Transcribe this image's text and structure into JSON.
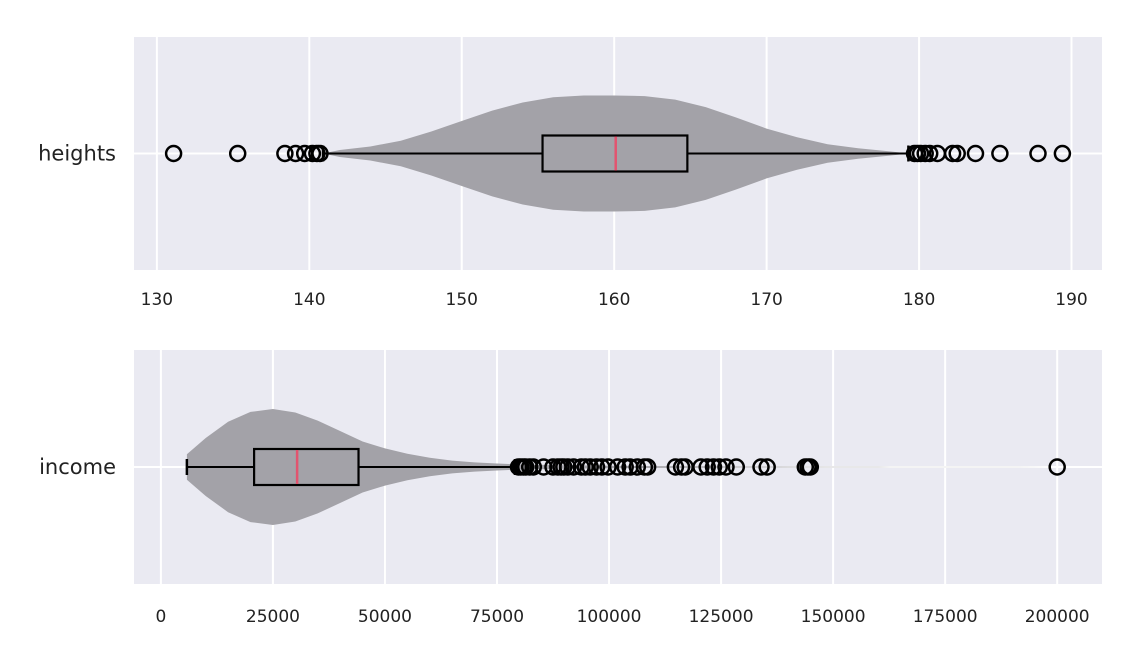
{
  "style": {
    "panel_bg": "#eaeaf2",
    "grid_color": "#ffffff",
    "violin_color": "#a3a2a8",
    "box_color": "#000000",
    "median_color": "#e2546f"
  },
  "chart_data": [
    {
      "type": "violin+box",
      "orientation": "horizontal",
      "category": "heights",
      "xlim": [
        128.5,
        192
      ],
      "xticks": [
        130,
        140,
        150,
        160,
        170,
        180,
        190
      ],
      "xtick_labels": [
        "130",
        "140",
        "150",
        "160",
        "170",
        "180",
        "190"
      ],
      "grid": true,
      "box": {
        "q1": 155.3,
        "median": 160.1,
        "q3": 164.8,
        "whisker_low": 140.9,
        "whisker_high": 179.3
      },
      "violin_min": 140.9,
      "violin_max": 179.3,
      "violin_profile": [
        [
          140.9,
          0.0
        ],
        [
          142,
          0.06
        ],
        [
          144,
          0.12
        ],
        [
          146,
          0.22
        ],
        [
          148,
          0.38
        ],
        [
          150,
          0.56
        ],
        [
          152,
          0.74
        ],
        [
          154,
          0.88
        ],
        [
          156,
          0.97
        ],
        [
          158,
          1.0
        ],
        [
          160,
          1.0
        ],
        [
          162,
          0.99
        ],
        [
          164,
          0.93
        ],
        [
          166,
          0.8
        ],
        [
          168,
          0.62
        ],
        [
          170,
          0.43
        ],
        [
          172,
          0.28
        ],
        [
          174,
          0.16
        ],
        [
          176,
          0.09
        ],
        [
          178,
          0.04
        ],
        [
          179.3,
          0.0
        ]
      ],
      "outliers": [
        131.1,
        135.3,
        138.4,
        139.1,
        139.7,
        140.2,
        140.5,
        140.7,
        179.7,
        179.9,
        180.1,
        180.4,
        180.7,
        181.2,
        182.2,
        182.5,
        183.7,
        185.3,
        187.8,
        189.4
      ]
    },
    {
      "type": "violin+box",
      "orientation": "horizontal",
      "category": "income",
      "xlim": [
        -6000,
        210000
      ],
      "xticks": [
        0,
        25000,
        50000,
        75000,
        100000,
        125000,
        150000,
        175000,
        200000
      ],
      "xtick_labels": [
        "0",
        "25000",
        "50000",
        "75000",
        "100000",
        "125000",
        "150000",
        "175000",
        "200000"
      ],
      "grid": true,
      "box": {
        "q1": 20800,
        "median": 30400,
        "q3": 44100,
        "whisker_low": 5800,
        "whisker_high": 79000
      },
      "violin_min": 5800,
      "violin_max": 200000,
      "violin_profile": [
        [
          5800,
          0.22
        ],
        [
          10000,
          0.5
        ],
        [
          15000,
          0.78
        ],
        [
          20000,
          0.95
        ],
        [
          25000,
          1.0
        ],
        [
          30000,
          0.94
        ],
        [
          35000,
          0.8
        ],
        [
          40000,
          0.62
        ],
        [
          45000,
          0.44
        ],
        [
          50000,
          0.32
        ],
        [
          55000,
          0.23
        ],
        [
          60000,
          0.16
        ],
        [
          65000,
          0.11
        ],
        [
          70000,
          0.08
        ],
        [
          75000,
          0.06
        ],
        [
          80000,
          0.045
        ],
        [
          90000,
          0.03
        ],
        [
          100000,
          0.022
        ],
        [
          110000,
          0.016
        ],
        [
          120000,
          0.012
        ],
        [
          130000,
          0.009
        ],
        [
          140000,
          0.007
        ],
        [
          150000,
          0.005
        ],
        [
          160000,
          0.003
        ],
        [
          175000,
          0.002
        ],
        [
          190000,
          0.002
        ],
        [
          200000,
          0.0
        ]
      ],
      "outliers": [
        79800,
        80300,
        80900,
        81400,
        82300,
        83100,
        85400,
        87500,
        88600,
        89300,
        89900,
        90800,
        92100,
        93800,
        94700,
        95800,
        97200,
        98400,
        99800,
        101900,
        103600,
        104700,
        106300,
        107900,
        108600,
        114800,
        116200,
        117000,
        120500,
        121900,
        123300,
        124600,
        126100,
        128400,
        133900,
        135300,
        143800,
        144400,
        144900,
        200000
      ]
    }
  ]
}
